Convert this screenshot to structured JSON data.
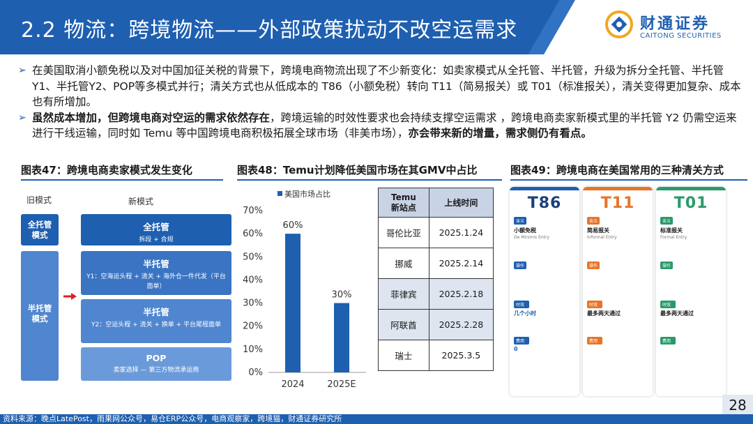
{
  "header": {
    "title": "2.2 物流：跨境物流——外部政策扰动不改空运需求",
    "logo_cn": "财通证券",
    "logo_en": "CAITONG SECURITIES"
  },
  "bullets": [
    {
      "text": "在美国取消小额免税以及对中国加征关税的背景下，跨境电商物流出现了不少新变化：如卖家模式从全托管、半托管，升级为拆分全托管、半托管Y1、半托管Y2、POP等多模式并行；清关方式也从低成本的 T86（小额免税）转向 T11（简易报关）或 T01（标准报关），清关变得更加复杂、成本也有所增加。"
    },
    {
      "bold1": "虽然成本增加，但跨境电商对空运的需求依然存在",
      "text": "，跨境运输的时效性要求也会持续支撑空运需求 ，跨境电商卖家新模式里的半托管 Y2 仍需空运来进行干线运输，同时如 Temu 等中国跨境电商积极拓展全球市场（非美市场），",
      "bold2": "亦会带来新的增量，需求侧仍有看点。"
    }
  ],
  "fig47": {
    "title": "图表47：跨境电商卖家模式发生变化",
    "old_label": "旧模式",
    "new_label": "新模式",
    "old_boxes": [
      "全托管\n模式",
      "半托管\n模式"
    ],
    "new_boxes": [
      {
        "title": "全托管",
        "sub": "拆段 + 合规"
      },
      {
        "title": "半托管",
        "sub": "Y1：空海运头程 + 清关 + 海外仓一件代发（平台面单）"
      },
      {
        "title": "半托管",
        "sub": "Y2：空运头程 + 清关 + 换单 + 平台尾程面单"
      },
      {
        "title": "POP",
        "sub": "卖家选择 — 第三方物流承运商"
      }
    ]
  },
  "fig48": {
    "title": "图表48：Temu计划降低美国市场在其GMV中占比",
    "table_headers": [
      "Temu\n新站点",
      "上线时间"
    ],
    "table_rows": [
      [
        "哥伦比亚",
        "2025.1.24"
      ],
      [
        "挪威",
        "2025.2.14"
      ],
      [
        "菲律宾",
        "2025.2.18"
      ],
      [
        "阿联酋",
        "2025.2.28"
      ],
      [
        "瑞士",
        "2025.3.5"
      ]
    ]
  },
  "chart_data": {
    "type": "bar",
    "categories": [
      "2024",
      "2025E"
    ],
    "series": [
      {
        "name": "美国市场占比",
        "values": [
          60,
          30
        ]
      }
    ],
    "data_labels": [
      "60%",
      "30%"
    ],
    "ylim": [
      0,
      70
    ],
    "yticks": [
      "0%",
      "10%",
      "20%",
      "30%",
      "40%",
      "50%",
      "60%",
      "70%"
    ],
    "legend": "top-left",
    "color": "#1e5fb0"
  },
  "fig49": {
    "title": "图表49：跨境电商在美国常用的三种清关方式",
    "cards": [
      {
        "code": "T86",
        "color": "#1e5fb0",
        "name": "小额免税",
        "en": "De Minimis Entry",
        "time": "几个小时",
        "cost": "0"
      },
      {
        "code": "T11",
        "color": "#e8742a",
        "name": "简易报关",
        "en": "Informal Entry",
        "time": "最多两天通过",
        "cost": ""
      },
      {
        "code": "T01",
        "color": "#2a9a6a",
        "name": "标准报关",
        "en": "Formal Entry",
        "time": "最多两天通过",
        "cost": ""
      }
    ],
    "labels": {
      "meaning": "含义",
      "operation": "操作",
      "time": "时效",
      "cost": "费用"
    }
  },
  "footer": {
    "source": "资料来源：晚点LatePost，雨果网公众号，易仓ERP公众号，电商观察家，跨境猫，财通证券研究所",
    "page": "28"
  }
}
